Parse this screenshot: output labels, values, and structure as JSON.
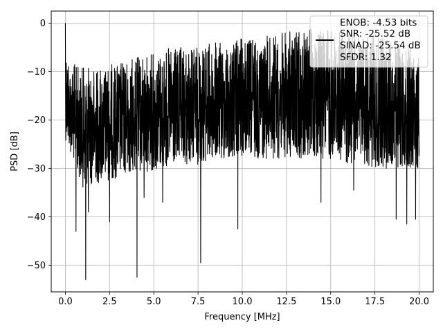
{
  "chart_data": {
    "type": "line",
    "xlabel": "Frequency [MHz]",
    "ylabel": "PSD [dB]",
    "xlim": [
      -0.8,
      20.8
    ],
    "ylim": [
      -55.5,
      2.5
    ],
    "x_ticks": [
      0.0,
      2.5,
      5.0,
      7.5,
      10.0,
      12.5,
      15.0,
      17.5,
      20.0
    ],
    "x_tick_labels": [
      "0.0",
      "2.5",
      "5.0",
      "7.5",
      "10.0",
      "12.5",
      "15.0",
      "17.5",
      "20.0"
    ],
    "y_ticks": [
      0,
      -10,
      -20,
      -30,
      -40,
      -50
    ],
    "y_tick_labels": [
      "0",
      "−10",
      "−20",
      "−30",
      "−40",
      "−50"
    ],
    "grid": true,
    "legend_position": "top-right",
    "series": [
      {
        "color": "#000000",
        "x_range": [
          0.0,
          20.0
        ],
        "upper_envelope_points": [
          [
            0.0,
            -3
          ],
          [
            0.25,
            -8
          ],
          [
            1.0,
            -9
          ],
          [
            2.0,
            -9
          ],
          [
            3.0,
            -8
          ],
          [
            4.0,
            -7
          ],
          [
            5.0,
            -6
          ],
          [
            6.0,
            -5
          ],
          [
            7.0,
            -5
          ],
          [
            8.0,
            -4
          ],
          [
            9.0,
            -4
          ],
          [
            10.0,
            -3
          ],
          [
            11.0,
            -3
          ],
          [
            12.0,
            -2
          ],
          [
            13.0,
            -1.5
          ],
          [
            14.0,
            -1
          ],
          [
            15.0,
            -1
          ],
          [
            16.0,
            -1.5
          ],
          [
            17.0,
            -2
          ],
          [
            18.0,
            -3
          ],
          [
            19.0,
            -4
          ],
          [
            20.0,
            -5
          ]
        ],
        "lower_envelope_points": [
          [
            0.0,
            -24
          ],
          [
            1.0,
            -34
          ],
          [
            2.0,
            -33
          ],
          [
            3.0,
            -32
          ],
          [
            4.0,
            -31
          ],
          [
            6.0,
            -30
          ],
          [
            8.0,
            -29
          ],
          [
            10.0,
            -28
          ],
          [
            12.0,
            -28
          ],
          [
            14.0,
            -28
          ],
          [
            16.0,
            -29
          ],
          [
            18.0,
            -30
          ],
          [
            20.0,
            -30
          ]
        ],
        "peak_points": [
          [
            0.0,
            0.0
          ]
        ],
        "notch_points": [
          [
            0.6,
            -43
          ],
          [
            1.15,
            -53
          ],
          [
            1.3,
            -39
          ],
          [
            2.5,
            -41
          ],
          [
            4.05,
            -52.5
          ],
          [
            4.45,
            -36
          ],
          [
            5.5,
            -37
          ],
          [
            7.65,
            -49.5
          ],
          [
            9.75,
            -42.5
          ],
          [
            14.45,
            -37
          ],
          [
            16.3,
            -34.5
          ],
          [
            18.7,
            -40.5
          ],
          [
            19.3,
            -41.5
          ],
          [
            19.8,
            -40.5
          ]
        ]
      }
    ]
  },
  "legend": {
    "lines": [
      "ENOB: -4.53 bits",
      "SNR: -25.52 dB",
      "SINAD: -25.54 dB",
      "SFDR: 1.32"
    ]
  }
}
